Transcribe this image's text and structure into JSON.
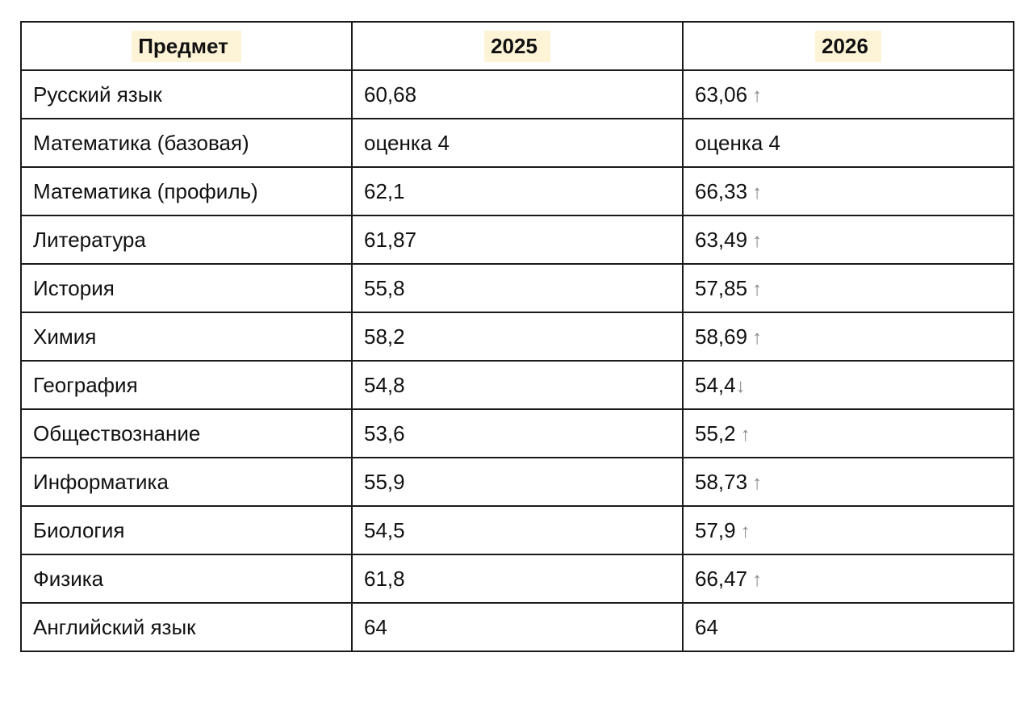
{
  "header": {
    "subject": "Предмет",
    "year1": "2025",
    "year2": "2026"
  },
  "rows": [
    {
      "subject": "Русский язык",
      "y2025": "60,68",
      "y2026": "63,06",
      "trend": "↑"
    },
    {
      "subject": "Математика (базовая)",
      "y2025": "оценка 4",
      "y2026": "оценка 4",
      "trend": ""
    },
    {
      "subject": "Математика (профиль)",
      "y2025": "62,1",
      "y2026": "66,33",
      "trend": "↑"
    },
    {
      "subject": "Литература",
      "y2025": "61,87",
      "y2026": "63,49",
      "trend": "↑"
    },
    {
      "subject": "История",
      "y2025": "55,8",
      "y2026": "57,85",
      "trend": "↑"
    },
    {
      "subject": "Химия",
      "y2025": "58,2",
      "y2026": "58,69",
      "trend": "↑"
    },
    {
      "subject": "География",
      "y2025": "54,8",
      "y2026": "54,4",
      "trend": "↓"
    },
    {
      "subject": "Обществознание",
      "y2025": "53,6",
      "y2026": "55,2",
      "trend": "↑"
    },
    {
      "subject": "Информатика",
      "y2025": "55,9",
      "y2026": "58,73",
      "trend": "↑"
    },
    {
      "subject": "Биология",
      "y2025": "54,5",
      "y2026": "57,9",
      "trend": "↑"
    },
    {
      "subject": "Физика",
      "y2025": "61,8",
      "y2026": "66,47",
      "trend": "↑"
    },
    {
      "subject": "Английский язык",
      "y2025": "64",
      "y2026": "64",
      "trend": ""
    }
  ],
  "colors": {
    "header_highlight": "#fdf3d6",
    "arrow": "#888888",
    "border": "#1a1a1a"
  }
}
